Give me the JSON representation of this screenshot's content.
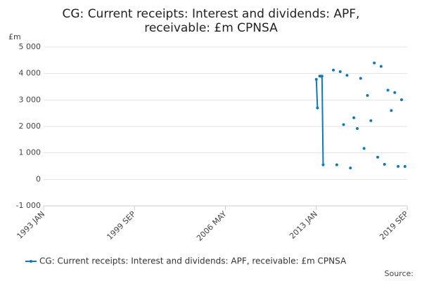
{
  "chart_data": {
    "type": "line",
    "title": [
      "CG: Current receipts: Interest and dividends: APF,",
      "receivable: £m CPNSA"
    ],
    "y_label": "£m",
    "source": "Source:",
    "x": [
      "2013 JAN",
      "2013 FEB",
      "2013 MAR",
      "2013 APR",
      "2013 MAY",
      "2013 JUN",
      "2013 JUL",
      "2013 AUG",
      "2014 APR",
      "2014 MAY",
      "2014 JUL",
      "2014 AUG",
      "2014 OCT",
      "2014 NOV",
      "2015 JAN",
      "2015 FEB",
      "2015 APR",
      "2015 MAY",
      "2015 JUL",
      "2015 AUG",
      "2015 OCT",
      "2015 NOV",
      "2016 JAN",
      "2016 FEB",
      "2016 APR",
      "2016 MAY",
      "2016 JUL",
      "2016 AUG",
      "2016 OCT",
      "2016 NOV",
      "2017 JAN",
      "2017 FEB",
      "2017 APR",
      "2017 MAY",
      "2017 JUL",
      "2017 AUG",
      "2017 OCT",
      "2017 NOV",
      "2018 JAN",
      "2018 FEB",
      "2018 APR",
      "2018 MAY",
      "2018 JUL",
      "2018 AUG",
      "2018 OCT",
      "2018 NOV",
      "2019 JAN",
      "2019 FEB",
      "2019 APR",
      "2019 MAY",
      "2019 JUL"
    ],
    "series": [
      {
        "name": "CG: Current receipts: Interest and dividends: APF, receivable: £m CPNSA",
        "color": "#0f7bb5",
        "values": [
          3780,
          2700,
          null,
          3900,
          3900,
          3900,
          550,
          null,
          4130,
          null,
          550,
          null,
          4070,
          null,
          2070,
          null,
          3930,
          null,
          430,
          null,
          2330,
          null,
          1920,
          null,
          3820,
          null,
          1170,
          null,
          3170,
          null,
          2220,
          null,
          4400,
          null,
          840,
          null,
          4270,
          null,
          570,
          null,
          3370,
          null,
          2600,
          null,
          3280,
          null,
          490,
          null,
          3010,
          null,
          490
        ]
      }
    ],
    "xlim": [
      "1993 JAN",
      "2019 SEP"
    ],
    "xticks": [
      "1993 JAN",
      "1999 SEP",
      "2006 MAY",
      "2013 JAN",
      "2019 SEP"
    ],
    "ylim": [
      -1000,
      5000
    ],
    "yticks": [
      {
        "value": -1000,
        "label": "-1 000"
      },
      0,
      {
        "value": 1000,
        "label": "1 000"
      },
      {
        "value": 2000,
        "label": "2 000"
      },
      {
        "value": 3000,
        "label": "3 000"
      },
      {
        "value": 4000,
        "label": "4 000"
      },
      {
        "value": 5000,
        "label": "5 000"
      }
    ],
    "grid": true
  }
}
